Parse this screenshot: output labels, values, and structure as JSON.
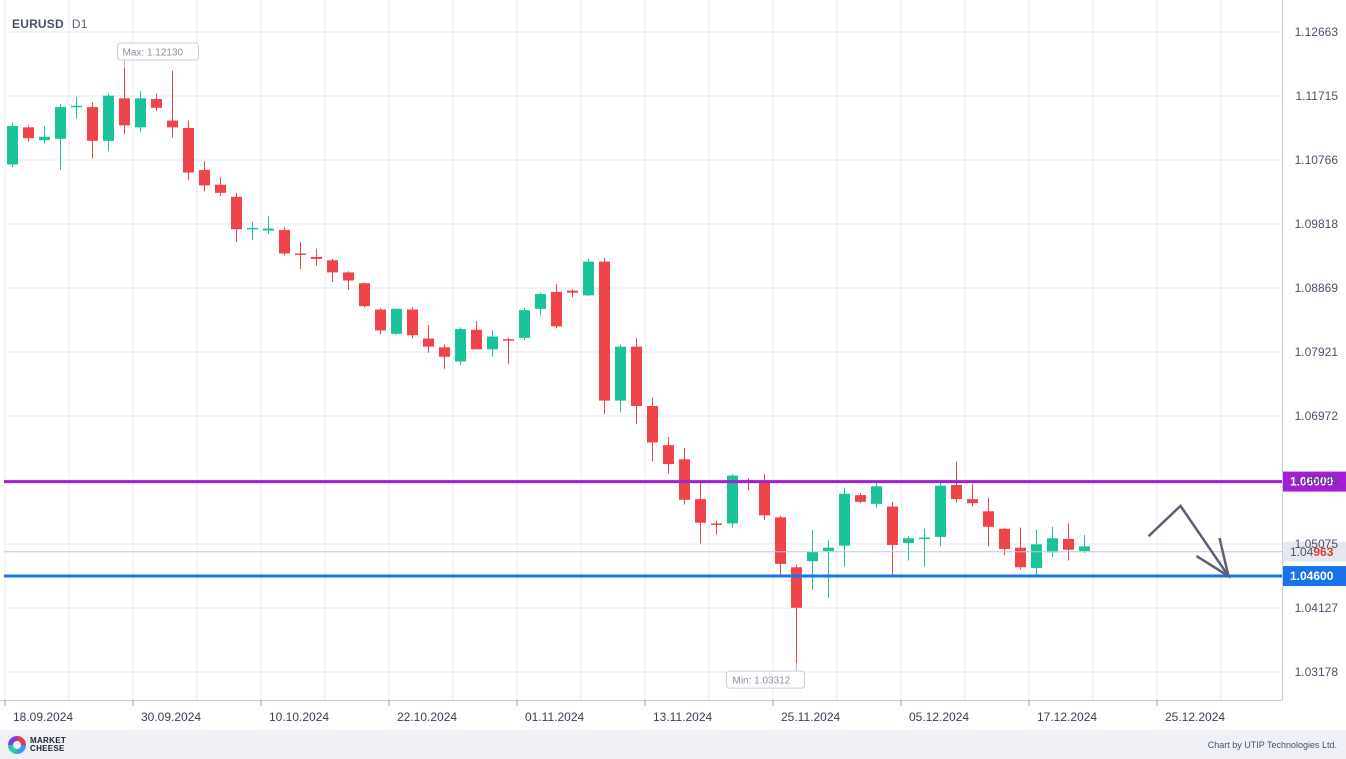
{
  "header": {
    "symbol": "EURUSD",
    "timeframe": "D1"
  },
  "footer": {
    "brand_line1": "MARKET",
    "brand_line2": "CHEESE",
    "credit": "Chart by UTIP Technologies Ltd."
  },
  "chart_data": {
    "type": "candlestick",
    "symbol": "EURUSD",
    "timeframe": "D1",
    "x_tick_labels": [
      "18.09.2024",
      "30.09.2024",
      "10.10.2024",
      "22.10.2024",
      "01.11.2024",
      "13.11.2024",
      "25.11.2024",
      "05.12.2024",
      "17.12.2024",
      "25.12.2024"
    ],
    "y_tick_labels": [
      "1.12663",
      "1.11715",
      "1.10766",
      "1.09818",
      "1.08869",
      "1.07921",
      "1.06972",
      "1.06025",
      "1.05075",
      "1.04127",
      "1.03178"
    ],
    "ylim": [
      1.0293,
      1.1303
    ],
    "grid": true,
    "candles": [
      {
        "o": 1.107,
        "h": 1.1132,
        "l": 1.1066,
        "c": 1.1127
      },
      {
        "o": 1.1125,
        "h": 1.1128,
        "l": 1.1104,
        "c": 1.1109
      },
      {
        "o": 1.1106,
        "h": 1.1127,
        "l": 1.1101,
        "c": 1.1111
      },
      {
        "o": 1.1108,
        "h": 1.116,
        "l": 1.1062,
        "c": 1.1155
      },
      {
        "o": 1.1155,
        "h": 1.117,
        "l": 1.1138,
        "c": 1.1157
      },
      {
        "o": 1.1155,
        "h": 1.1162,
        "l": 1.1079,
        "c": 1.1105
      },
      {
        "o": 1.1105,
        "h": 1.1175,
        "l": 1.109,
        "c": 1.1172
      },
      {
        "o": 1.1168,
        "h": 1.1213,
        "l": 1.1115,
        "c": 1.1128
      },
      {
        "o": 1.1125,
        "h": 1.1179,
        "l": 1.1118,
        "c": 1.1168
      },
      {
        "o": 1.1167,
        "h": 1.1175,
        "l": 1.1149,
        "c": 1.1154
      },
      {
        "o": 1.1135,
        "h": 1.1209,
        "l": 1.111,
        "c": 1.1125
      },
      {
        "o": 1.1124,
        "h": 1.1135,
        "l": 1.1047,
        "c": 1.1058
      },
      {
        "o": 1.1062,
        "h": 1.1075,
        "l": 1.103,
        "c": 1.1039
      },
      {
        "o": 1.104,
        "h": 1.1051,
        "l": 1.1023,
        "c": 1.1028
      },
      {
        "o": 1.1022,
        "h": 1.1028,
        "l": 1.0955,
        "c": 1.0974
      },
      {
        "o": 1.0975,
        "h": 1.0985,
        "l": 1.0958,
        "c": 1.0976
      },
      {
        "o": 1.0972,
        "h": 1.0994,
        "l": 1.0967,
        "c": 1.0975
      },
      {
        "o": 1.0973,
        "h": 1.0977,
        "l": 1.0935,
        "c": 1.0938
      },
      {
        "o": 1.0938,
        "h": 1.0955,
        "l": 1.0915,
        "c": 1.0937
      },
      {
        "o": 1.0933,
        "h": 1.0945,
        "l": 1.092,
        "c": 1.093
      },
      {
        "o": 1.0928,
        "h": 1.093,
        "l": 1.0896,
        "c": 1.091
      },
      {
        "o": 1.091,
        "h": 1.0912,
        "l": 1.0884,
        "c": 1.0898
      },
      {
        "o": 1.0894,
        "h": 1.0895,
        "l": 1.0858,
        "c": 1.086
      },
      {
        "o": 1.0855,
        "h": 1.0857,
        "l": 1.0818,
        "c": 1.0824
      },
      {
        "o": 1.0819,
        "h": 1.0857,
        "l": 1.0817,
        "c": 1.0856
      },
      {
        "o": 1.0855,
        "h": 1.0858,
        "l": 1.0812,
        "c": 1.0817
      },
      {
        "o": 1.0812,
        "h": 1.0832,
        "l": 1.0791,
        "c": 1.08
      },
      {
        "o": 1.0799,
        "h": 1.0803,
        "l": 1.0767,
        "c": 1.0785
      },
      {
        "o": 1.0778,
        "h": 1.0829,
        "l": 1.0773,
        "c": 1.0826
      },
      {
        "o": 1.0825,
        "h": 1.0838,
        "l": 1.0796,
        "c": 1.0796
      },
      {
        "o": 1.0796,
        "h": 1.0824,
        "l": 1.0785,
        "c": 1.0815
      },
      {
        "o": 1.0811,
        "h": 1.0813,
        "l": 1.0774,
        "c": 1.0809
      },
      {
        "o": 1.0813,
        "h": 1.0857,
        "l": 1.081,
        "c": 1.0854
      },
      {
        "o": 1.0856,
        "h": 1.088,
        "l": 1.0846,
        "c": 1.0878
      },
      {
        "o": 1.0881,
        "h": 1.0893,
        "l": 1.0827,
        "c": 1.083
      },
      {
        "o": 1.0883,
        "h": 1.0885,
        "l": 1.0873,
        "c": 1.088
      },
      {
        "o": 1.0876,
        "h": 1.093,
        "l": 1.0875,
        "c": 1.0926
      },
      {
        "o": 1.0926,
        "h": 1.0932,
        "l": 1.07,
        "c": 1.072
      },
      {
        "o": 1.072,
        "h": 1.0803,
        "l": 1.0703,
        "c": 1.08
      },
      {
        "o": 1.08,
        "h": 1.0813,
        "l": 1.0685,
        "c": 1.0712
      },
      {
        "o": 1.0712,
        "h": 1.0725,
        "l": 1.063,
        "c": 1.0658
      },
      {
        "o": 1.0654,
        "h": 1.0666,
        "l": 1.0612,
        "c": 1.0626
      },
      {
        "o": 1.0633,
        "h": 1.065,
        "l": 1.0566,
        "c": 1.0573
      },
      {
        "o": 1.0574,
        "h": 1.0598,
        "l": 1.0508,
        "c": 1.0539
      },
      {
        "o": 1.0538,
        "h": 1.0542,
        "l": 1.0521,
        "c": 1.0537
      },
      {
        "o": 1.0538,
        "h": 1.0611,
        "l": 1.0532,
        "c": 1.0609
      },
      {
        "o": 1.0602,
        "h": 1.0605,
        "l": 1.0587,
        "c": 1.06
      },
      {
        "o": 1.06,
        "h": 1.0611,
        "l": 1.0543,
        "c": 1.055
      },
      {
        "o": 1.0547,
        "h": 1.0549,
        "l": 1.0458,
        "c": 1.0478
      },
      {
        "o": 1.0473,
        "h": 1.0477,
        "l": 1.0331,
        "c": 1.0413
      },
      {
        "o": 1.0482,
        "h": 1.0528,
        "l": 1.044,
        "c": 1.0496
      },
      {
        "o": 1.0497,
        "h": 1.0513,
        "l": 1.0428,
        "c": 1.0502
      },
      {
        "o": 1.0505,
        "h": 1.0591,
        "l": 1.0474,
        "c": 1.0582
      },
      {
        "o": 1.058,
        "h": 1.0583,
        "l": 1.0568,
        "c": 1.057
      },
      {
        "o": 1.0567,
        "h": 1.06,
        "l": 1.0561,
        "c": 1.0593
      },
      {
        "o": 1.0563,
        "h": 1.057,
        "l": 1.0459,
        "c": 1.0506
      },
      {
        "o": 1.0509,
        "h": 1.0519,
        "l": 1.0483,
        "c": 1.0516
      },
      {
        "o": 1.0516,
        "h": 1.053,
        "l": 1.0474,
        "c": 1.0517
      },
      {
        "o": 1.0518,
        "h": 1.0598,
        "l": 1.0504,
        "c": 1.0594
      },
      {
        "o": 1.0595,
        "h": 1.063,
        "l": 1.0569,
        "c": 1.0574
      },
      {
        "o": 1.0574,
        "h": 1.0596,
        "l": 1.0563,
        "c": 1.0568
      },
      {
        "o": 1.0556,
        "h": 1.0576,
        "l": 1.0504,
        "c": 1.0533
      },
      {
        "o": 1.053,
        "h": 1.0531,
        "l": 1.0491,
        "c": 1.05
      },
      {
        "o": 1.0502,
        "h": 1.0532,
        "l": 1.047,
        "c": 1.0473
      },
      {
        "o": 1.0472,
        "h": 1.0529,
        "l": 1.046,
        "c": 1.0507
      },
      {
        "o": 1.0495,
        "h": 1.0533,
        "l": 1.0488,
        "c": 1.0516
      },
      {
        "o": 1.0515,
        "h": 1.0538,
        "l": 1.0483,
        "c": 1.0499
      },
      {
        "o": 1.0497,
        "h": 1.0521,
        "l": 1.0494,
        "c": 1.0504
      }
    ],
    "colors": {
      "up": "#1ac39a",
      "down": "#ef4449"
    },
    "levels": [
      {
        "price": 1.06,
        "label": "1.06000",
        "color": "#a21fd6"
      },
      {
        "price": 1.046,
        "label": "1.04600",
        "color": "#1a73e8"
      }
    ],
    "current_price": {
      "price": 1.0496,
      "label_prefix": "1.04",
      "label_suffix": "963"
    },
    "annotations": {
      "max_label": "Max: 1.12130",
      "min_label": "Min: 1.03312",
      "forecast_path": [
        {
          "x_index": 71.0,
          "price": 1.0519
        },
        {
          "x_index": 73.0,
          "price": 1.0564
        },
        {
          "x_index": 76.0,
          "price": 1.046
        }
      ]
    }
  }
}
